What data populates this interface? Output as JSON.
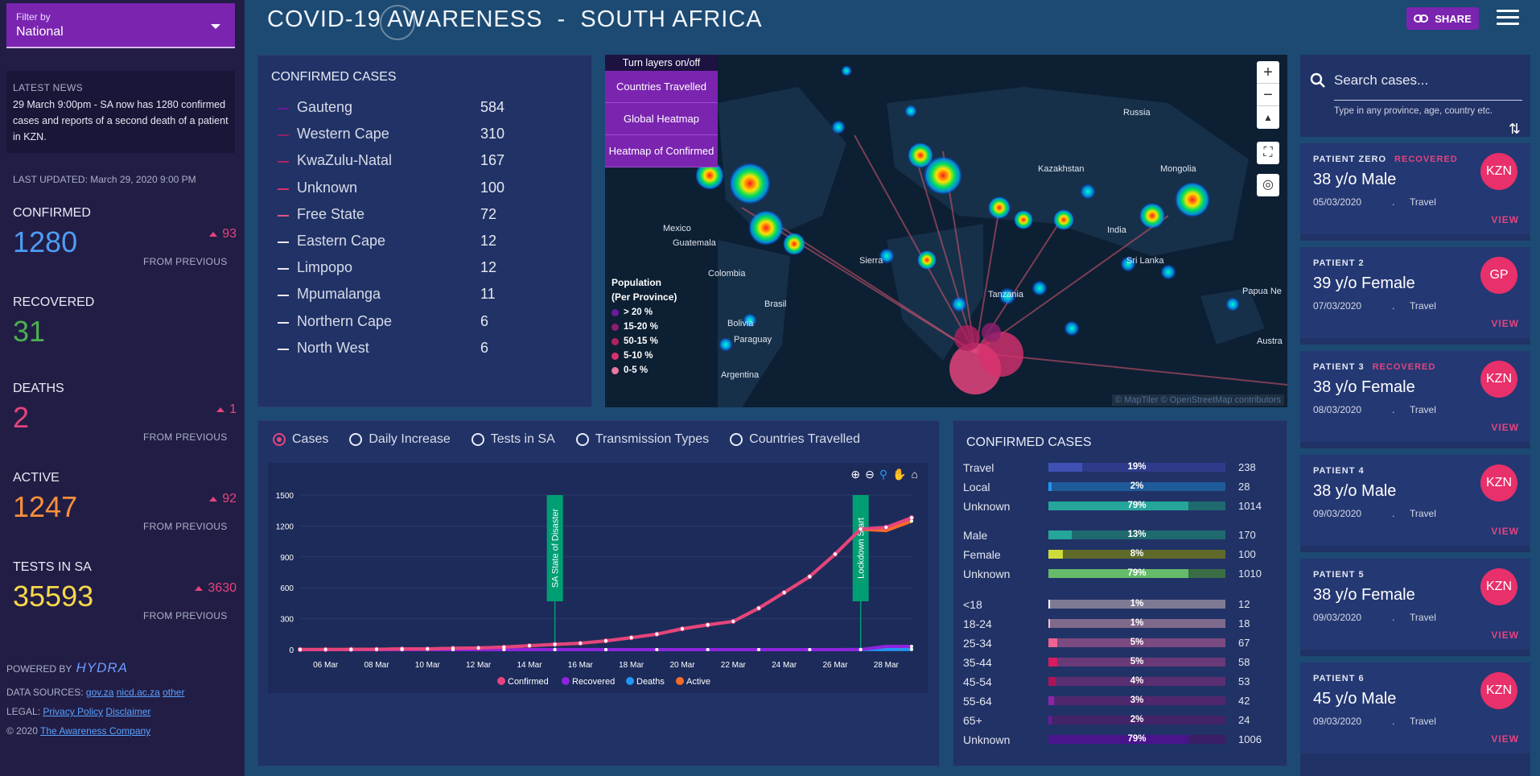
{
  "header": {
    "title_left": "COVID-19 AW",
    "title_mid": "A",
    "title_right": "RENESS  -  SOUTH AFRICA",
    "share_label": "SHARE"
  },
  "sidebar": {
    "filter_label": "Filter by",
    "filter_value": "National",
    "news_heading": "LATEST NEWS",
    "news_text": "29 March 9:00pm - SA now has 1280 confirmed cases and reports of a second death of a patient in KZN.",
    "last_updated": "LAST UPDATED: March 29, 2020 9:00 PM",
    "stats": [
      {
        "label": "CONFIRMED",
        "value": "1280",
        "delta": "93",
        "from": "FROM PREVIOUS",
        "color": "#4d9df5"
      },
      {
        "label": "RECOVERED",
        "value": "31",
        "delta": "",
        "from": "",
        "color": "#4caf50"
      },
      {
        "label": "DEATHS",
        "value": "2",
        "delta": "1",
        "from": "FROM PREVIOUS",
        "color": "#e5447d"
      },
      {
        "label": "ACTIVE",
        "value": "1247",
        "delta": "92",
        "from": "FROM PREVIOUS",
        "color": "#f7903a"
      },
      {
        "label": "TESTS IN SA",
        "value": "35593",
        "delta": "3630",
        "from": "FROM PREVIOUS",
        "color": "#f6d84a"
      }
    ],
    "powered_by": "POWERED BY",
    "powered_brand": "HYDRA",
    "sources_label": "DATA SOURCES:",
    "sources": [
      "gov.za",
      "nicd.ac.za",
      "other"
    ],
    "legal_label": "LEGAL:",
    "legal_links": [
      "Privacy Policy",
      "Disclaimer"
    ],
    "copyright": "© 2020",
    "company": "The Awareness Company"
  },
  "provinces": {
    "title": "CONFIRMED CASES",
    "rows": [
      {
        "name": "Gauteng",
        "value": "584",
        "color": "#6a1b9a"
      },
      {
        "name": "Western Cape",
        "value": "310",
        "color": "#8e1f6e"
      },
      {
        "name": "KwaZulu-Natal",
        "value": "167",
        "color": "#b02160"
      },
      {
        "name": "Unknown",
        "value": "100",
        "color": "#d8316e"
      },
      {
        "name": "Free State",
        "value": "72",
        "color": "#e25589"
      },
      {
        "name": "Eastern Cape",
        "value": "12",
        "color": "#ebe7f0"
      },
      {
        "name": "Limpopo",
        "value": "12",
        "color": "#ebe7f0"
      },
      {
        "name": "Mpumalanga",
        "value": "11",
        "color": "#ebe7f0"
      },
      {
        "name": "Northern Cape",
        "value": "6",
        "color": "#ebe7f0"
      },
      {
        "name": "North West",
        "value": "6",
        "color": "#ebe7f0"
      }
    ]
  },
  "map": {
    "layers_header": "Turn layers on/off",
    "layers": [
      "Countries Travelled",
      "Global Heatmap",
      "Heatmap of Confirmed"
    ],
    "legend_title_1": "Population",
    "legend_title_2": "(Per Province)",
    "legend": [
      {
        "label": "> 20 %",
        "color": "#6a1b9a"
      },
      {
        "label": "15-20 %",
        "color": "#8e1f6e"
      },
      {
        "label": "50-15 %",
        "color": "#b02160"
      },
      {
        "label": "5-10 %",
        "color": "#d8316e"
      },
      {
        "label": "0-5 %",
        "color": "#e878a0"
      }
    ],
    "place_labels": [
      "Russia",
      "Kazakhstan",
      "Mongolia",
      "Brasil",
      "Mexico",
      "Colombia",
      "Sierra",
      "Tanzania",
      "India",
      "Sri Lanka",
      "Papua Ne",
      "Austra",
      "Bolivia",
      "Paraguay",
      "Argentina",
      "Guatemala"
    ],
    "attribution": "© MapTiler © OpenStreetMap contributors"
  },
  "chart_tabs": {
    "options": [
      "Cases",
      "Daily Increase",
      "Tests in SA",
      "Transmission Types",
      "Countries Travelled"
    ],
    "selected": "Cases"
  },
  "chart_data": {
    "type": "line",
    "x": [
      "05 Mar",
      "06 Mar",
      "07 Mar",
      "08 Mar",
      "09 Mar",
      "10 Mar",
      "11 Mar",
      "12 Mar",
      "13 Mar",
      "14 Mar",
      "15 Mar",
      "16 Mar",
      "17 Mar",
      "18 Mar",
      "19 Mar",
      "20 Mar",
      "21 Mar",
      "22 Mar",
      "23 Mar",
      "24 Mar",
      "25 Mar",
      "26 Mar",
      "27 Mar",
      "28 Mar",
      "29 Mar"
    ],
    "xticks": [
      "06 Mar",
      "08 Mar",
      "10 Mar",
      "12 Mar",
      "14 Mar",
      "16 Mar",
      "18 Mar",
      "20 Mar",
      "22 Mar",
      "24 Mar",
      "26 Mar",
      "28 Mar"
    ],
    "yticks": [
      0,
      300,
      600,
      900,
      1200,
      1500
    ],
    "ylim": [
      0,
      1500
    ],
    "series": [
      {
        "name": "Confirmed",
        "color": "#e5447d",
        "values": [
          1,
          1,
          2,
          3,
          7,
          7,
          13,
          16,
          24,
          38,
          51,
          62,
          85,
          116,
          150,
          202,
          240,
          274,
          402,
          554,
          709,
          927,
          1170,
          1187,
          1280
        ]
      },
      {
        "name": "Recovered",
        "color": "#8e24dd",
        "values": [
          0,
          0,
          0,
          0,
          0,
          0,
          0,
          0,
          0,
          0,
          0,
          0,
          0,
          0,
          0,
          0,
          0,
          0,
          0,
          0,
          0,
          0,
          0,
          31,
          31
        ]
      },
      {
        "name": "Deaths",
        "color": "#2196f3",
        "values": [
          0,
          0,
          0,
          0,
          0,
          0,
          0,
          0,
          0,
          0,
          0,
          0,
          0,
          0,
          0,
          0,
          0,
          0,
          0,
          0,
          0,
          0,
          1,
          1,
          2
        ]
      },
      {
        "name": "Active",
        "color": "#f76b2a",
        "values": [
          1,
          1,
          2,
          3,
          7,
          7,
          13,
          16,
          24,
          38,
          51,
          62,
          85,
          116,
          150,
          202,
          240,
          274,
          402,
          554,
          709,
          927,
          1169,
          1155,
          1247
        ]
      }
    ],
    "annotations": [
      {
        "label": "SA State of Disaster",
        "x": "15 Mar"
      },
      {
        "label": "Lockdown Start",
        "x": "27 Mar"
      }
    ]
  },
  "breakdown": {
    "title": "CONFIRMED CASES",
    "groups": [
      [
        {
          "label": "Travel",
          "pct": "19%",
          "fraction": 0.19,
          "value": "238",
          "color": "#3f51b5",
          "track": "#2f3b8a"
        },
        {
          "label": "Local",
          "pct": "2%",
          "fraction": 0.02,
          "value": "28",
          "color": "#2196f3",
          "track": "#1f5a99"
        },
        {
          "label": "Unknown",
          "pct": "79%",
          "fraction": 0.79,
          "value": "1014",
          "color": "#26a69a",
          "track": "#1f6a6f"
        }
      ],
      [
        {
          "label": "Male",
          "pct": "13%",
          "fraction": 0.13,
          "value": "170",
          "color": "#26a69a",
          "track": "#1f6a6f"
        },
        {
          "label": "Female",
          "pct": "8%",
          "fraction": 0.08,
          "value": "100",
          "color": "#cddc39",
          "track": "#5f6a2a"
        },
        {
          "label": "Unknown",
          "pct": "79%",
          "fraction": 0.79,
          "value": "1010",
          "color": "#66bb6a",
          "track": "#3b6d45"
        }
      ],
      [
        {
          "label": "<18",
          "pct": "1%",
          "fraction": 0.01,
          "value": "12",
          "color": "#f5f5f5",
          "track": "#7f7a94"
        },
        {
          "label": "18-24",
          "pct": "1%",
          "fraction": 0.01,
          "value": "18",
          "color": "#f8bbd0",
          "track": "#7f6a8c"
        },
        {
          "label": "25-34",
          "pct": "5%",
          "fraction": 0.05,
          "value": "67",
          "color": "#f06292",
          "track": "#7a4a80"
        },
        {
          "label": "35-44",
          "pct": "5%",
          "fraction": 0.05,
          "value": "58",
          "color": "#d81b60",
          "track": "#6a3a78"
        },
        {
          "label": "45-54",
          "pct": "4%",
          "fraction": 0.04,
          "value": "53",
          "color": "#ad1457",
          "track": "#5a2f72"
        },
        {
          "label": "55-64",
          "pct": "3%",
          "fraction": 0.03,
          "value": "42",
          "color": "#8e24aa",
          "track": "#50286e"
        },
        {
          "label": "65+",
          "pct": "2%",
          "fraction": 0.02,
          "value": "24",
          "color": "#6a1b9a",
          "track": "#432469"
        },
        {
          "label": "Unknown",
          "pct": "79%",
          "fraction": 0.79,
          "value": "1006",
          "color": "#4a148c",
          "track": "#3a1f66"
        }
      ]
    ]
  },
  "search": {
    "placeholder": "Search cases...",
    "hint": "Type in any province, age, country etc."
  },
  "patients": [
    {
      "id": "PATIENT ZERO",
      "status": "RECOVERED",
      "desc": "38 y/o Male",
      "date": "05/03/2020",
      "type": "Travel",
      "province": "KZN",
      "view": "VIEW"
    },
    {
      "id": "PATIENT 2",
      "status": "",
      "desc": "39 y/o Female",
      "date": "07/03/2020",
      "type": "Travel",
      "province": "GP",
      "view": "VIEW"
    },
    {
      "id": "PATIENT 3",
      "status": "RECOVERED",
      "desc": "38 y/o Female",
      "date": "08/03/2020",
      "type": "Travel",
      "province": "KZN",
      "view": "VIEW"
    },
    {
      "id": "PATIENT 4",
      "status": "",
      "desc": "38 y/o Male",
      "date": "09/03/2020",
      "type": "Travel",
      "province": "KZN",
      "view": "VIEW"
    },
    {
      "id": "PATIENT 5",
      "status": "",
      "desc": "38 y/o Female",
      "date": "09/03/2020",
      "type": "Travel",
      "province": "KZN",
      "view": "VIEW"
    },
    {
      "id": "PATIENT 6",
      "status": "",
      "desc": "45 y/o Male",
      "date": "09/03/2020",
      "type": "Travel",
      "province": "KZN",
      "view": "VIEW"
    }
  ]
}
